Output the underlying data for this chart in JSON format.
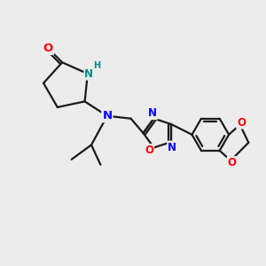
{
  "background_color": "#ececec",
  "bond_color": "#1a1a1a",
  "bond_width": 1.6,
  "atom_colors": {
    "N": "#0000ff",
    "O": "#ff0000",
    "NH": "#008b8b",
    "C": "#1a1a1a"
  },
  "font_size_atom": 8.5,
  "title": ""
}
